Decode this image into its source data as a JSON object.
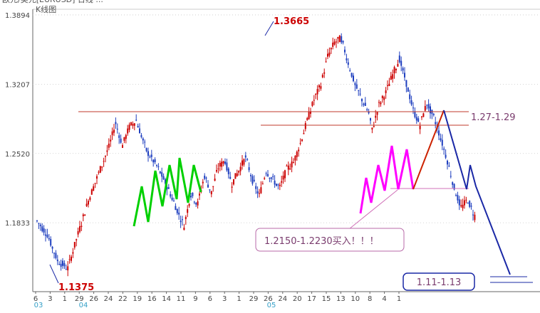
{
  "window": {
    "header_text": "欧元/美元[EURUSD] 日线 ...",
    "panel_title": "K线图"
  },
  "chart_data": {
    "type": "candlestick",
    "title": "K线图",
    "xlabel": "",
    "ylabel": "",
    "ylim": [
      1.115,
      1.395
    ],
    "y_ticks": [
      "1.3894",
      "1.3207",
      "1.2520",
      "1.1833"
    ],
    "y_tick_values": [
      1.3894,
      1.3207,
      1.252,
      1.1833
    ],
    "x_ticks": [
      "6",
      "3",
      "1",
      "29",
      "26",
      "24",
      "22",
      "19",
      "16",
      "14",
      "11",
      "9",
      "6",
      "3",
      "1",
      "29",
      "26",
      "24",
      "20",
      "17",
      "15",
      "13",
      "10",
      "8",
      "4",
      "1"
    ],
    "x_sub_ticks": [
      "03",
      "04",
      "05"
    ],
    "grid": true,
    "price_path": [
      [
        0,
        1.185
      ],
      [
        3,
        1.172
      ],
      [
        6,
        1.146
      ],
      [
        9,
        1.138
      ],
      [
        12,
        1.172
      ],
      [
        15,
        1.205
      ],
      [
        18,
        1.232
      ],
      [
        21,
        1.258
      ],
      [
        23,
        1.282
      ],
      [
        25,
        1.26
      ],
      [
        27,
        1.278
      ],
      [
        29,
        1.285
      ],
      [
        32,
        1.255
      ],
      [
        35,
        1.24
      ],
      [
        38,
        1.22
      ],
      [
        41,
        1.196
      ],
      [
        43,
        1.18
      ],
      [
        45,
        1.212
      ],
      [
        47,
        1.202
      ],
      [
        49,
        1.23
      ],
      [
        51,
        1.213
      ],
      [
        53,
        1.238
      ],
      [
        55,
        1.245
      ],
      [
        57,
        1.222
      ],
      [
        59,
        1.235
      ],
      [
        61,
        1.248
      ],
      [
        63,
        1.226
      ],
      [
        65,
        1.21
      ],
      [
        67,
        1.235
      ],
      [
        69,
        1.226
      ],
      [
        71,
        1.218
      ],
      [
        73,
        1.236
      ],
      [
        75,
        1.243
      ],
      [
        77,
        1.262
      ],
      [
        79,
        1.284
      ],
      [
        81,
        1.305
      ],
      [
        83,
        1.32
      ],
      [
        85,
        1.348
      ],
      [
        87,
        1.362
      ],
      [
        89,
        1.366
      ],
      [
        91,
        1.342
      ],
      [
        93,
        1.32
      ],
      [
        95,
        1.306
      ],
      [
        97,
        1.292
      ],
      [
        98,
        1.275
      ],
      [
        100,
        1.3
      ],
      [
        102,
        1.312
      ],
      [
        104,
        1.33
      ],
      [
        106,
        1.346
      ],
      [
        108,
        1.322
      ],
      [
        110,
        1.295
      ],
      [
        112,
        1.28
      ],
      [
        114,
        1.302
      ],
      [
        116,
        1.288
      ],
      [
        118,
        1.268
      ],
      [
        120,
        1.245
      ],
      [
        122,
        1.218
      ],
      [
        124,
        1.198
      ],
      [
        126,
        1.206
      ],
      [
        128,
        1.19
      ]
    ],
    "horizontal_lines": [
      {
        "name": "resistance",
        "value": 1.2877,
        "color": "#c0392b"
      },
      {
        "name": "target-upper",
        "value": 1.2795,
        "color": "#c0392b"
      },
      {
        "name": "buy-zone-top",
        "value": 1.284,
        "color": "#e67ec6"
      },
      {
        "name": "support",
        "value": 1.2165,
        "color": "#d070b8"
      }
    ],
    "annotations": {
      "high_label": "1.3665",
      "low_label": "1.1375",
      "range_upper": "1.27-1.29",
      "buy_note": "1.2150-1.2230买入！！！",
      "target_low": "1.11-1.13"
    },
    "colors": {
      "bull": "#cc0000",
      "bear": "#1f3fbf",
      "green_zigzag": "#00d000",
      "magenta_zigzag": "#ff00ff",
      "red_projection": "#cc2200",
      "blue_projection": "#1a28a6"
    }
  }
}
